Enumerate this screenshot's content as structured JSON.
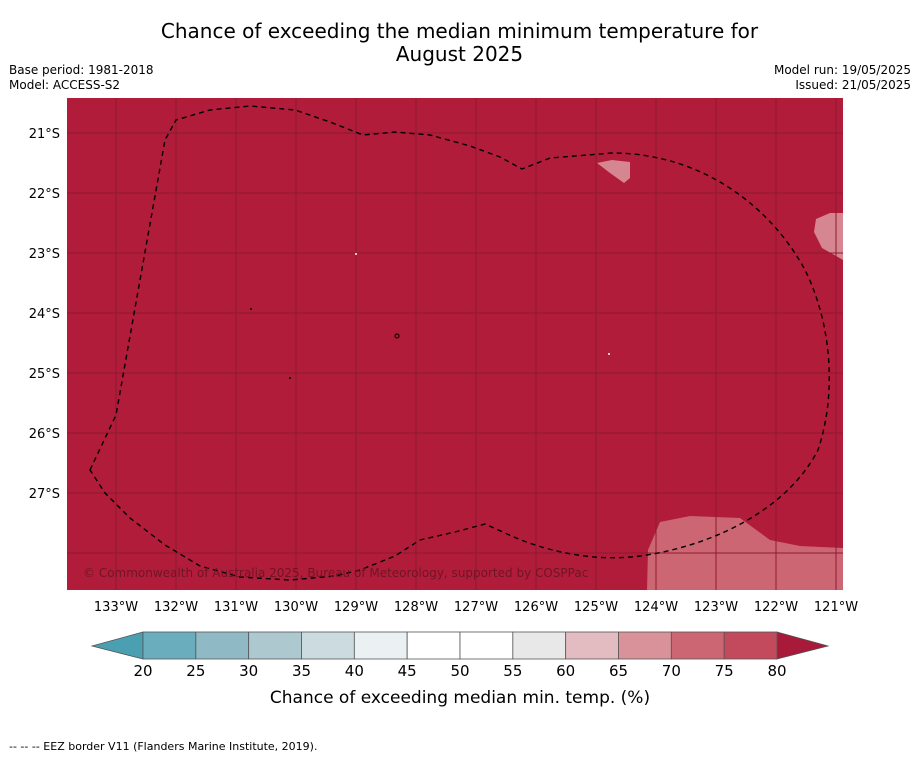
{
  "title": {
    "line1": "Chance of exceeding the median minimum temperature for",
    "line2": "August 2025"
  },
  "meta_left": {
    "base_period": "Base period: 1981-2018",
    "model": "Model: ACCESS-S2"
  },
  "meta_right": {
    "model_run": "Model run: 19/05/2025",
    "issued": "Issued: 21/05/2025"
  },
  "map": {
    "lat_labels": [
      "21°S",
      "22°S",
      "23°S",
      "24°S",
      "25°S",
      "26°S",
      "27°S"
    ],
    "lon_labels": [
      "133°W",
      "132°W",
      "131°W",
      "130°W",
      "129°W",
      "128°W",
      "127°W",
      "126°W",
      "125°W",
      "124°W",
      "123°W",
      "122°W",
      "121°W"
    ],
    "copyright": "© Commonwealth of Australia 2025, Bureau of Meteorology, supported by COSPPac",
    "background_category": ">80",
    "colors": {
      "above_80": "#b01c3a",
      "band_75_80": "#c24a5c",
      "band_70_75": "#cc6672",
      "band_65_70": "#d9929a",
      "band_60_65": "#e3bcc1",
      "grid": "#8e1a30",
      "eez_line": "#000000"
    }
  },
  "colorbar": {
    "ticks": [
      "20",
      "25",
      "30",
      "35",
      "40",
      "45",
      "50",
      "55",
      "60",
      "65",
      "70",
      "75",
      "80"
    ],
    "colors": [
      "#6aaebd",
      "#8fbac5",
      "#adc8ce",
      "#ccdbdf",
      "#ebf1f3",
      "#ffffff",
      "#ffffff",
      "#e8e8e9",
      "#e3bcc1",
      "#d9929a",
      "#cc6672",
      "#c24a5c"
    ],
    "under_color": "#4a9fb0",
    "over_color": "#a8193a",
    "label": "Chance of exceeding median min. temp. (%)"
  },
  "footnote": "--  --  -- EEZ border V11 (Flanders Marine Institute, 2019)."
}
